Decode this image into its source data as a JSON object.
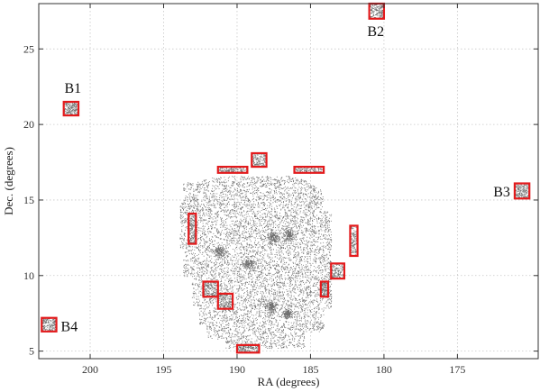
{
  "chart_data": {
    "type": "scatter",
    "title": "",
    "xlabel": "RA (degrees)",
    "ylabel": "Dec. (degrees)",
    "xlim": [
      203.5,
      169.5
    ],
    "ylim": [
      4.5,
      28.0
    ],
    "x_reversed": true,
    "grid": true,
    "x_ticks": [
      200,
      195,
      190,
      185,
      180,
      175
    ],
    "y_ticks": [
      5,
      10,
      15,
      20,
      25
    ],
    "x_tick_labels": [
      "200",
      "195",
      "190",
      "185",
      "180",
      "175"
    ],
    "y_tick_labels": [
      "5",
      "10",
      "15",
      "20",
      "25"
    ],
    "box_color": "#e31a1c",
    "point_color": "#555555",
    "main_field": {
      "description_type": "dense point cloud",
      "ra_range": [
        184.0,
        193.7
      ],
      "dec_range": [
        5.0,
        17.0
      ]
    },
    "background_regions": [
      {
        "label": "B1",
        "ra": [
          201.8,
          200.8
        ],
        "dec": [
          20.6,
          21.5
        ]
      },
      {
        "label": "B2",
        "ra": [
          181.0,
          180.0
        ],
        "dec": [
          27.0,
          28.0
        ]
      },
      {
        "label": "B3",
        "ra": [
          171.1,
          170.1
        ],
        "dec": [
          15.1,
          16.1
        ]
      },
      {
        "label": "B4",
        "ra": [
          203.3,
          202.3
        ],
        "dec": [
          6.3,
          7.2
        ]
      }
    ],
    "boundary_regions": [
      {
        "ra": [
          189.0,
          188.0
        ],
        "dec": [
          17.2,
          18.1
        ]
      },
      {
        "ra": [
          191.3,
          189.3
        ],
        "dec": [
          16.8,
          17.2
        ]
      },
      {
        "ra": [
          186.1,
          184.1
        ],
        "dec": [
          16.8,
          17.2
        ]
      },
      {
        "ra": [
          193.3,
          192.8
        ],
        "dec": [
          12.1,
          14.1
        ]
      },
      {
        "ra": [
          182.3,
          181.8
        ],
        "dec": [
          11.3,
          13.3
        ]
      },
      {
        "ra": [
          183.6,
          182.7
        ],
        "dec": [
          9.8,
          10.8
        ]
      },
      {
        "ra": [
          184.3,
          183.8
        ],
        "dec": [
          8.6,
          9.6
        ]
      },
      {
        "ra": [
          192.3,
          191.3
        ],
        "dec": [
          8.6,
          9.6
        ]
      },
      {
        "ra": [
          191.3,
          190.3
        ],
        "dec": [
          7.8,
          8.8
        ]
      },
      {
        "ra": [
          190.0,
          188.5
        ],
        "dec": [
          4.9,
          5.4
        ]
      }
    ]
  }
}
